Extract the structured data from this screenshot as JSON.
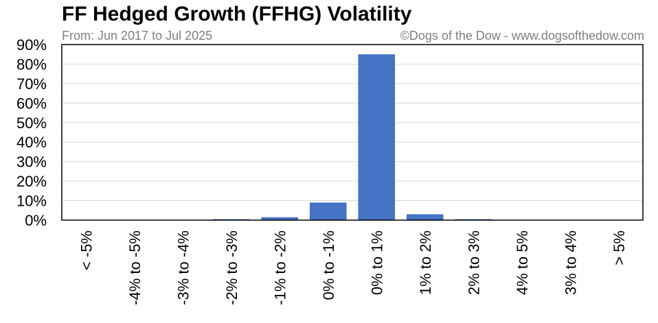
{
  "header": {
    "title": "FF Hedged Growth (FFHG) Volatility",
    "subtitle": "From: Jun 2017 to Jul 2025",
    "credit": "©Dogs of the Dow - www.dogsofthedow.com"
  },
  "colors": {
    "bar": "#4472c4",
    "grid": "#d9d9d9",
    "axis": "#000000",
    "subtitle": "#7f7f7f"
  },
  "chart_data": {
    "type": "bar",
    "title": "FF Hedged Growth (FFHG) Volatility",
    "subtitle": "From: Jun 2017 to Jul 2025",
    "categories": [
      "< -5%",
      "-4% to -5%",
      "-3% to -4%",
      "-2% to -3%",
      "-1% to -2%",
      "0% to -1%",
      "0% to 1%",
      "1% to 2%",
      "2% to 3%",
      "4% to 5%",
      "3% to 4%",
      "> 5%"
    ],
    "values": [
      0,
      0,
      0,
      0.5,
      1.5,
      9,
      85,
      3,
      0.5,
      0,
      0,
      0
    ],
    "ylim": [
      0,
      90
    ],
    "yticks": [
      "0%",
      "10%",
      "20%",
      "30%",
      "40%",
      "50%",
      "60%",
      "70%",
      "80%",
      "90%"
    ],
    "xlabel": "",
    "ylabel": "",
    "grid": true,
    "legend": "none"
  }
}
